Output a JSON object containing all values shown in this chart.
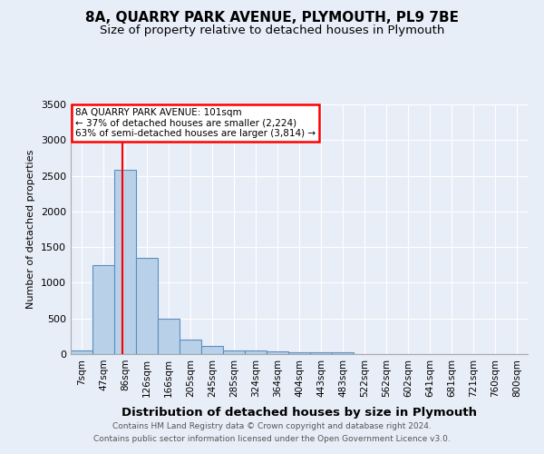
{
  "title": "8A, QUARRY PARK AVENUE, PLYMOUTH, PL9 7BE",
  "subtitle": "Size of property relative to detached houses in Plymouth",
  "xlabel": "Distribution of detached houses by size in Plymouth",
  "ylabel": "Number of detached properties",
  "bin_labels": [
    "7sqm",
    "47sqm",
    "86sqm",
    "126sqm",
    "166sqm",
    "205sqm",
    "245sqm",
    "285sqm",
    "324sqm",
    "364sqm",
    "404sqm",
    "443sqm",
    "483sqm",
    "522sqm",
    "562sqm",
    "602sqm",
    "641sqm",
    "681sqm",
    "721sqm",
    "760sqm",
    "800sqm"
  ],
  "bin_values": [
    50,
    1250,
    2580,
    1350,
    500,
    200,
    110,
    50,
    50,
    40,
    30,
    30,
    30,
    0,
    0,
    0,
    0,
    0,
    0,
    0,
    0
  ],
  "bar_color": "#b8d0e8",
  "bar_edge_color": "#5a8fc0",
  "annotation_text": "8A QUARRY PARK AVENUE: 101sqm\n← 37% of detached houses are smaller (2,224)\n63% of semi-detached houses are larger (3,814) →",
  "annotation_box_color": "white",
  "annotation_box_edge_color": "red",
  "ylim": [
    0,
    3500
  ],
  "yticks": [
    0,
    500,
    1000,
    1500,
    2000,
    2500,
    3000,
    3500
  ],
  "footer_line1": "Contains HM Land Registry data © Crown copyright and database right 2024.",
  "footer_line2": "Contains public sector information licensed under the Open Government Licence v3.0.",
  "background_color": "#e8eef8",
  "grid_color": "white",
  "title_fontsize": 11,
  "subtitle_fontsize": 9.5
}
